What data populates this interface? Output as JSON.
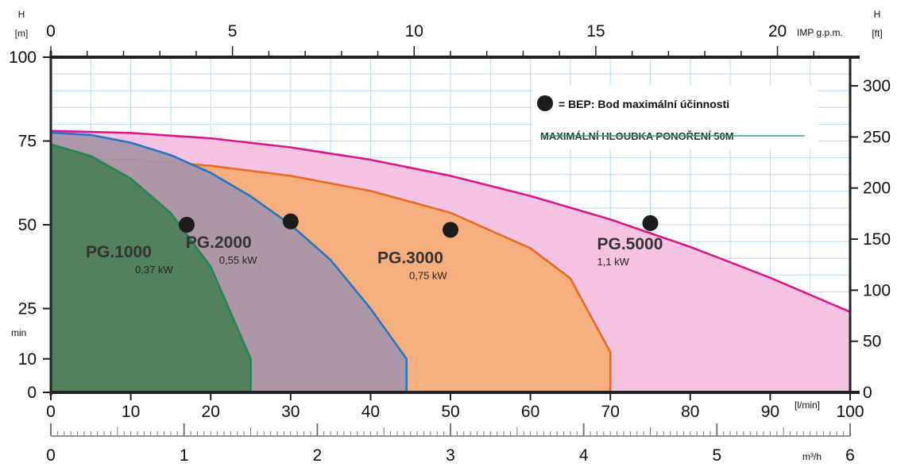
{
  "chart_data": {
    "type": "area",
    "x_unit": "[l/min]",
    "y_unit": "H\n[m]",
    "y2_unit": "H\n[ft]",
    "x_top_unit": "IMP g.p.m.",
    "x_bottom_unit": "m³/h",
    "xlim": [
      0,
      100
    ],
    "ylim": [
      0,
      100
    ],
    "x_ticks": [
      0,
      10,
      20,
      30,
      40,
      50,
      60,
      70,
      80,
      90,
      100
    ],
    "y_ticks": [
      0,
      10,
      25,
      50,
      75,
      100
    ],
    "y_min_label": "min",
    "y2_ticks": [
      0,
      50,
      100,
      150,
      200,
      250,
      300
    ],
    "x_top_ticks": [
      0,
      5,
      10,
      15,
      20
    ],
    "x_bottom_ticks": [
      0,
      1,
      2,
      3,
      4,
      5,
      6
    ],
    "grid": true,
    "legend": {
      "position": "top-right",
      "marker_text": "= BEP: Bod maximální účinnosti",
      "note": "MAXIMÁLNÍ HLOUBKA PONOŘENÍ 50M"
    },
    "series": [
      {
        "name": "PG.5000",
        "power": "1,1 kW",
        "line_color": "#e0158a",
        "fill_color": "#f5c0e2",
        "x": [
          0,
          10,
          20,
          30,
          40,
          50,
          60,
          70,
          80,
          90,
          100
        ],
        "y": [
          78,
          77.4,
          75.8,
          73.1,
          69.4,
          64.6,
          58.6,
          51.6,
          43.4,
          34.2,
          24
        ],
        "bep": [
          75,
          50.5
        ]
      },
      {
        "name": "PG.3000",
        "power": "0,75 kW",
        "line_color": "#ea6a1a",
        "fill_color": "#f6ad78",
        "x": [
          0,
          10,
          20,
          30,
          40,
          50,
          60,
          65,
          70,
          70
        ],
        "y": [
          70,
          69.4,
          67.6,
          64.6,
          60.1,
          53.6,
          43,
          34,
          12,
          0
        ],
        "bep": [
          50,
          48.5
        ]
      },
      {
        "name": "PG.2000",
        "power": "0,55 kW",
        "line_color": "#1f77c8",
        "fill_color": "#a995a8",
        "x": [
          0,
          5,
          10,
          15,
          20,
          25,
          30,
          35,
          40,
          44.5,
          44.5
        ],
        "y": [
          77.5,
          76.8,
          74.5,
          70.8,
          65.5,
          58.5,
          50,
          39.5,
          25,
          10,
          0
        ],
        "bep": [
          30,
          51
        ]
      },
      {
        "name": "PG.1000",
        "power": "0,37 kW",
        "line_color": "#1a8a4e",
        "fill_color": "#4e7e58",
        "x": [
          0,
          5,
          10,
          15,
          20,
          23,
          25,
          25
        ],
        "y": [
          74,
          70.5,
          63.8,
          53.5,
          37.5,
          21,
          10,
          0
        ],
        "bep": [
          17,
          50
        ]
      }
    ]
  }
}
